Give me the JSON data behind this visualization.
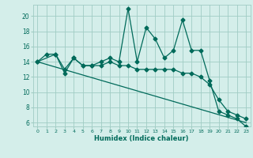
{
  "xlabel": "Humidex (Indice chaleur)",
  "bg_color": "#d4eeea",
  "grid_color": "#a0ccc4",
  "line_color": "#006a5a",
  "xlim": [
    -0.5,
    23.5
  ],
  "ylim": [
    5.5,
    21.5
  ],
  "yticks": [
    6,
    8,
    10,
    12,
    14,
    16,
    18,
    20
  ],
  "xticks": [
    0,
    1,
    2,
    3,
    4,
    5,
    6,
    7,
    8,
    9,
    10,
    11,
    12,
    13,
    14,
    15,
    16,
    17,
    18,
    19,
    20,
    21,
    22,
    23
  ],
  "line1_x": [
    0,
    1,
    2,
    3,
    4,
    5,
    6,
    7,
    8,
    9,
    10,
    11,
    12,
    13,
    14,
    15,
    16,
    17,
    18,
    19,
    20,
    21,
    22,
    23
  ],
  "line1_y": [
    14,
    15,
    15,
    13,
    14.5,
    13.5,
    13.5,
    14,
    14.5,
    14,
    21,
    14,
    18.5,
    17,
    14.5,
    15.5,
    19.5,
    15.5,
    15.5,
    11.5,
    7.5,
    7,
    6.5,
    5.5
  ],
  "line2_x": [
    0,
    2,
    3,
    4,
    5,
    6,
    7,
    8,
    9,
    10,
    11,
    12,
    13,
    14,
    15,
    16,
    17,
    18,
    19,
    20,
    21,
    22,
    23
  ],
  "line2_y": [
    14,
    15,
    12.5,
    14.5,
    13.5,
    13.5,
    13.5,
    14,
    13.5,
    13.5,
    13,
    13,
    13,
    13,
    13,
    12.5,
    12.5,
    12,
    11,
    9,
    7.5,
    7,
    6.5
  ],
  "line3_x": [
    0,
    23
  ],
  "line3_y": [
    14,
    6.0
  ]
}
